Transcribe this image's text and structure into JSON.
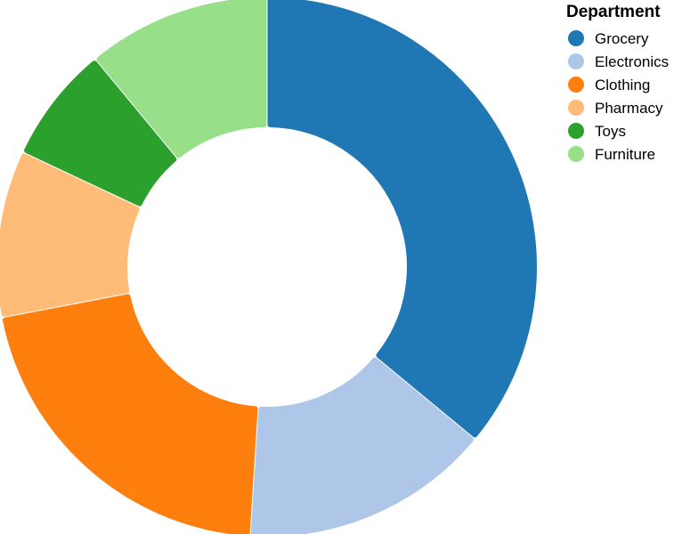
{
  "chart_data": {
    "type": "pie",
    "legend_title": "Department",
    "legend_position": "top-right",
    "categories": [
      "Grocery",
      "Electronics",
      "Clothing",
      "Pharmacy",
      "Toys",
      "Furniture"
    ],
    "values": [
      36,
      15,
      21,
      10,
      7,
      11
    ],
    "colors": [
      "#1f77b4",
      "#aec7e8",
      "#ff7f0e",
      "#ffbb78",
      "#2ca02c",
      "#98df8a"
    ]
  }
}
